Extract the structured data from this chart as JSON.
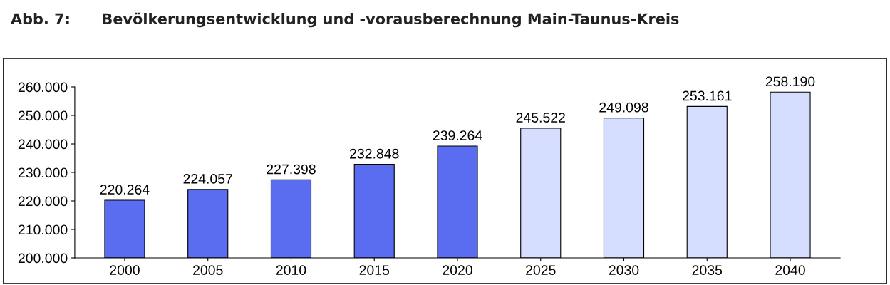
{
  "chart_data": {
    "type": "bar",
    "title": "Abb. 7:      Bevölkerungsentwicklung und -vorausberechnung Main-Taunus-Kreis",
    "categories": [
      "2000",
      "2005",
      "2010",
      "2015",
      "2020",
      "2025",
      "2030",
      "2035",
      "2040"
    ],
    "values": [
      220264,
      224057,
      227398,
      232848,
      239264,
      245522,
      249098,
      253161,
      258190
    ],
    "colors": [
      "#5a6cf0",
      "#5a6cf0",
      "#5a6cf0",
      "#5a6cf0",
      "#5a6cf0",
      "#d6deff",
      "#d6deff",
      "#d6deff",
      "#d6deff"
    ],
    "value_labels": [
      "220.264",
      "224.057",
      "227.398",
      "232.848",
      "239.264",
      "245.522",
      "249.098",
      "253.161",
      "258.190"
    ],
    "ylim": [
      200000,
      260000
    ],
    "yticks": [
      {
        "value": 200000,
        "label": "200.000"
      },
      {
        "value": 210000,
        "label": "210.000"
      },
      {
        "value": 220000,
        "label": "220.000"
      },
      {
        "value": 230000,
        "label": "230.000"
      },
      {
        "value": 240000,
        "label": "240.000"
      },
      {
        "value": 250000,
        "label": "250.000"
      },
      {
        "value": 260000,
        "label": "260.000"
      }
    ],
    "grid": false,
    "legend": false
  }
}
